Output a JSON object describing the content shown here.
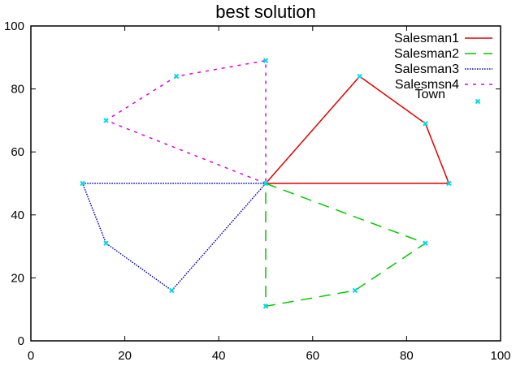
{
  "chart_data": {
    "type": "line",
    "title": "best solution",
    "xlabel": "",
    "ylabel": "",
    "xlim": [
      0,
      100
    ],
    "ylim": [
      0,
      100
    ],
    "xticks": [
      0,
      20,
      40,
      60,
      80,
      100
    ],
    "yticks": [
      0,
      20,
      40,
      60,
      80,
      100
    ],
    "grid": false,
    "legend_position": "top-right",
    "series": [
      {
        "name": "Salesman1",
        "color": "#e00000",
        "dash": "solid",
        "points": [
          [
            50,
            50
          ],
          [
            70,
            84
          ],
          [
            84,
            69
          ],
          [
            89,
            50
          ],
          [
            50,
            50
          ]
        ]
      },
      {
        "name": "Salesman2",
        "color": "#00c800",
        "dash": "long-dash",
        "points": [
          [
            50,
            50
          ],
          [
            84,
            31
          ],
          [
            69,
            16
          ],
          [
            50,
            11
          ],
          [
            50,
            50
          ]
        ]
      },
      {
        "name": "Salesman3",
        "color": "#0000b0",
        "dash": "dotted",
        "points": [
          [
            50,
            50
          ],
          [
            30,
            16
          ],
          [
            16,
            31
          ],
          [
            11,
            50
          ],
          [
            50,
            50
          ]
        ]
      },
      {
        "name": "Salesmsn4",
        "color": "#e000e0",
        "dash": "short-dash",
        "points": [
          [
            50,
            50
          ],
          [
            16,
            70
          ],
          [
            31,
            84
          ],
          [
            50,
            89
          ],
          [
            50,
            50
          ]
        ]
      }
    ],
    "towns": {
      "name": "Town",
      "color": "#00d8e8",
      "marker": "x",
      "points": [
        [
          50,
          50
        ],
        [
          70,
          84
        ],
        [
          84,
          69
        ],
        [
          89,
          50
        ],
        [
          84,
          31
        ],
        [
          69,
          16
        ],
        [
          50,
          11
        ],
        [
          30,
          16
        ],
        [
          16,
          31
        ],
        [
          11,
          50
        ],
        [
          16,
          70
        ],
        [
          31,
          84
        ],
        [
          50,
          89
        ]
      ]
    }
  }
}
